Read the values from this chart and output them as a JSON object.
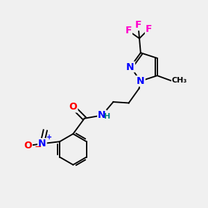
{
  "background_color": "#f0f0f0",
  "bond_color": "#000000",
  "atom_colors": {
    "N": "#0000ff",
    "O": "#ff0000",
    "F": "#ff00cc",
    "H": "#008080"
  },
  "font_size_atoms": 10,
  "font_size_small": 8
}
